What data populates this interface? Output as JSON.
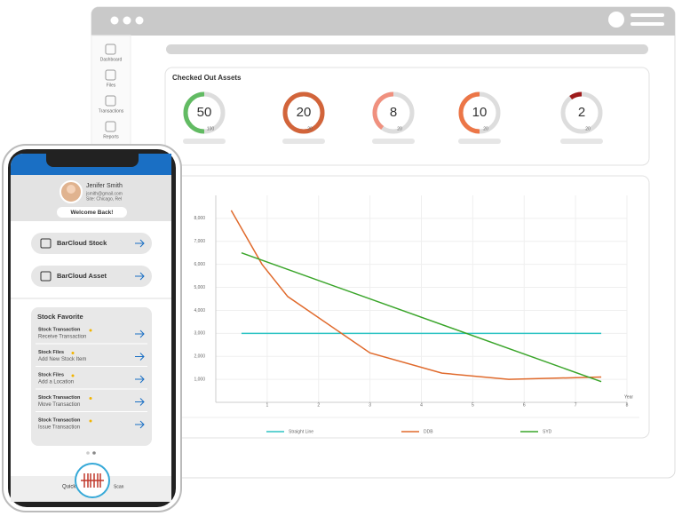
{
  "sidebar": [
    "Dashboard",
    "Files",
    "Transactions",
    "Reports"
  ],
  "assets_panel": {
    "title": "Checked Out Assets",
    "gauges": [
      {
        "value": 50,
        "max": 100,
        "color": "#62bb63"
      },
      {
        "value": 20,
        "max": 20,
        "color": "#d2643a"
      },
      {
        "value": 8,
        "max": 20,
        "color": "#f0907e"
      },
      {
        "value": 10,
        "max": 20,
        "color": "#ec7647"
      },
      {
        "value": 2,
        "max": 20,
        "color": "#9e1b1b"
      }
    ]
  },
  "chart_data": {
    "type": "line",
    "x_label": "Year",
    "xlim": [
      0,
      8
    ],
    "xticks": [
      1,
      2,
      3,
      4,
      5,
      6,
      7,
      8
    ],
    "ylim": [
      0,
      9000
    ],
    "yticks": [
      {
        "value": 1000,
        "label": "1,000"
      },
      {
        "value": 2000,
        "label": "2,000"
      },
      {
        "value": 3000,
        "label": "3,000"
      },
      {
        "value": 4000,
        "label": "4,000"
      },
      {
        "value": 5000,
        "label": "5,000"
      },
      {
        "value": 6000,
        "label": "6,000"
      },
      {
        "value": 7000,
        "label": "7,000"
      },
      {
        "value": 8000,
        "label": "8,000"
      }
    ],
    "grid": true,
    "series": [
      {
        "name": "Straight Line",
        "color": "#2ec4c4",
        "x": [
          0.5,
          7.5
        ],
        "values": [
          3000,
          3000
        ]
      },
      {
        "name": "DDB",
        "color": "#e06a2c",
        "x": [
          0.3,
          0.9,
          1.4,
          3.0,
          4.4,
          5.7,
          7.5
        ],
        "values": [
          8350,
          6000,
          4600,
          2150,
          1270,
          1000,
          1100
        ]
      },
      {
        "name": "SYD",
        "color": "#3aa52a",
        "x": [
          0.5,
          7.5
        ],
        "values": [
          6500,
          900
        ]
      }
    ]
  },
  "phone": {
    "user_name": "Jenifer Smith",
    "user_email": "jsmith@gmail.com",
    "user_site": "Site: Chicago, Rel",
    "welcome": "Welcome Back!",
    "buttons": [
      "BarCloud Stock",
      "BarCloud Asset"
    ],
    "favorites_title": "Stock Favorite",
    "favorites": [
      {
        "title": "Stock Transaction",
        "subtitle": "Receive Transaction"
      },
      {
        "title": "Stock Files",
        "subtitle": "Add New Stock Item"
      },
      {
        "title": "Stock Files",
        "subtitle": "Add a Location"
      },
      {
        "title": "Stock Transaction",
        "subtitle": "Move Transaction"
      },
      {
        "title": "Stock Transaction",
        "subtitle": "Issue Transaction"
      }
    ],
    "quick": "Quick",
    "scan": "Scan"
  }
}
